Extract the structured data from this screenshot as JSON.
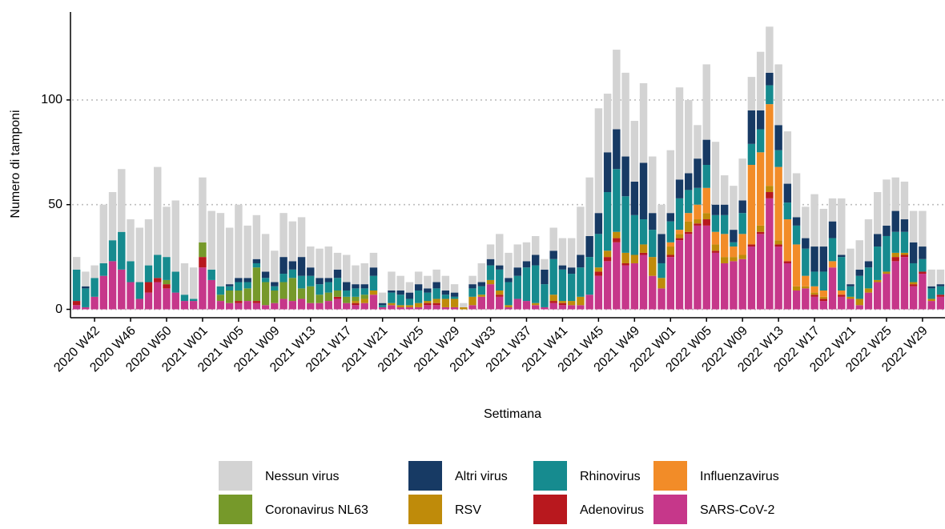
{
  "chart_data": {
    "type": "stacked-bar",
    "x_label": "Settimana",
    "y_label": "Numero di tamponi",
    "categories": [
      null,
      null,
      "2020 W42",
      null,
      null,
      null,
      "2020 W46",
      null,
      null,
      null,
      "2020 W50",
      null,
      null,
      null,
      "2021 W01",
      null,
      null,
      null,
      "2021 W05",
      null,
      null,
      null,
      "2021 W09",
      null,
      null,
      null,
      "2021 W13",
      null,
      null,
      null,
      "2021 W17",
      null,
      null,
      null,
      "2021 W21",
      null,
      null,
      null,
      "2021 W25",
      null,
      null,
      null,
      "2021 W29",
      null,
      null,
      null,
      "2021 W33",
      null,
      null,
      null,
      "2021 W37",
      null,
      null,
      null,
      "2021 W41",
      null,
      null,
      null,
      "2021 W45",
      null,
      null,
      null,
      "2021 W49",
      null,
      null,
      null,
      "2022 W01",
      null,
      null,
      null,
      "2022 W05",
      null,
      null,
      null,
      "2022 W09",
      null,
      null,
      null,
      "2022 W13",
      null,
      null,
      null,
      "2022 W17",
      null,
      null,
      null,
      "2022 W21",
      null,
      null,
      null,
      "2022 W25",
      null,
      null,
      null,
      "2022 W29",
      null,
      null
    ],
    "series": [
      {
        "name": "Nessun virus",
        "color": "#d3d3d3",
        "values": [
          6,
          7,
          6,
          28,
          23,
          30,
          20,
          26,
          22,
          42,
          24,
          34,
          15,
          15,
          31,
          28,
          35,
          27,
          35,
          25,
          21,
          18,
          15,
          21,
          19,
          19,
          10,
          14,
          15,
          8,
          13,
          9,
          10,
          7,
          5,
          9,
          7,
          5,
          6,
          6,
          6,
          7,
          4,
          2,
          4,
          9,
          7,
          15,
          12,
          11,
          9,
          9,
          5,
          11,
          13,
          14,
          23,
          28,
          50,
          28,
          38,
          40,
          29,
          38,
          27,
          14,
          30,
          44,
          35,
          16,
          36,
          30,
          14,
          21,
          20,
          16,
          28,
          22,
          29,
          25,
          21,
          15,
          25,
          18,
          11,
          27,
          17,
          14,
          20,
          20,
          22,
          16,
          18,
          15,
          17,
          8,
          7
        ]
      },
      {
        "name": "Altri virus",
        "color": "#173a64",
        "values": [
          0,
          1,
          0,
          0,
          0,
          0,
          0,
          0,
          0,
          0,
          0,
          0,
          0,
          0,
          0,
          0,
          0,
          1,
          2,
          2,
          2,
          3,
          2,
          8,
          4,
          9,
          4,
          3,
          2,
          4,
          4,
          2,
          2,
          4,
          1,
          1,
          2,
          3,
          3,
          2,
          3,
          2,
          2,
          0,
          2,
          2,
          3,
          2,
          2,
          4,
          3,
          5,
          7,
          4,
          2,
          3,
          6,
          10,
          10,
          19,
          19,
          19,
          16,
          27,
          8,
          14,
          4,
          9,
          8,
          14,
          12,
          5,
          5,
          6,
          6,
          16,
          9,
          6,
          12,
          9,
          4,
          5,
          12,
          12,
          8,
          1,
          1,
          3,
          3,
          6,
          5,
          10,
          6,
          10,
          6,
          1,
          1
        ]
      },
      {
        "name": "Rhinovirus",
        "color": "#168b8f",
        "values": [
          15,
          9,
          9,
          6,
          10,
          18,
          10,
          8,
          8,
          11,
          11,
          10,
          3,
          1,
          0,
          5,
          4,
          2,
          4,
          3,
          2,
          2,
          2,
          4,
          4,
          6,
          5,
          5,
          5,
          6,
          3,
          4,
          3,
          7,
          1,
          5,
          5,
          3,
          6,
          4,
          5,
          2,
          1,
          0,
          4,
          4,
          7,
          10,
          11,
          11,
          16,
          18,
          11,
          17,
          15,
          13,
          14,
          18,
          16,
          28,
          30,
          27,
          19,
          12,
          13,
          7,
          10,
          15,
          11,
          8,
          11,
          8,
          9,
          2,
          10,
          10,
          11,
          9,
          8,
          8,
          9,
          13,
          7,
          9,
          11,
          16,
          5,
          11,
          10,
          16,
          17,
          10,
          10,
          9,
          6,
          5,
          4
        ]
      },
      {
        "name": "Influenzavirus",
        "color": "#f28c28",
        "values": [
          0,
          0,
          0,
          0,
          0,
          0,
          0,
          0,
          0,
          0,
          0,
          0,
          0,
          0,
          0,
          0,
          0,
          0,
          0,
          0,
          0,
          0,
          0,
          0,
          0,
          0,
          0,
          0,
          0,
          0,
          0,
          0,
          0,
          0,
          0,
          0,
          0,
          0,
          0,
          0,
          0,
          0,
          0,
          0,
          0,
          0,
          0,
          0,
          0,
          0,
          0,
          0,
          0,
          0,
          0,
          0,
          0,
          0,
          0,
          0,
          0,
          0,
          0,
          0,
          0,
          0,
          2,
          2,
          4,
          7,
          12,
          6,
          11,
          5,
          10,
          38,
          35,
          39,
          35,
          20,
          20,
          5,
          3,
          3,
          3,
          2,
          0,
          0,
          0,
          0,
          0,
          0,
          0,
          0,
          0,
          0,
          0
        ]
      },
      {
        "name": "Coronavirus NL63",
        "color": "#76992a",
        "values": [
          0,
          0,
          0,
          0,
          0,
          0,
          0,
          0,
          0,
          0,
          2,
          0,
          0,
          0,
          7,
          0,
          3,
          6,
          5,
          6,
          16,
          11,
          6,
          8,
          11,
          5,
          8,
          4,
          4,
          3,
          3,
          2,
          2,
          0,
          0,
          0,
          0,
          0,
          0,
          0,
          0,
          0,
          0,
          0,
          0,
          0,
          0,
          0,
          0,
          0,
          0,
          0,
          0,
          0,
          0,
          0,
          0,
          0,
          0,
          0,
          0,
          0,
          0,
          0,
          0,
          0,
          0,
          0,
          0,
          0,
          0,
          0,
          0,
          0,
          0,
          0,
          0,
          0,
          0,
          0,
          0,
          0,
          0,
          0,
          0,
          0,
          0,
          0,
          0,
          0,
          0,
          0,
          0,
          0,
          0,
          0,
          0
        ]
      },
      {
        "name": "RSV",
        "color": "#bf8b0a",
        "values": [
          0,
          0,
          0,
          0,
          0,
          0,
          0,
          0,
          0,
          0,
          0,
          0,
          0,
          0,
          0,
          0,
          0,
          0,
          0,
          0,
          0,
          0,
          0,
          0,
          0,
          0,
          0,
          0,
          0,
          0,
          0,
          1,
          2,
          2,
          0,
          1,
          1,
          1,
          2,
          1,
          2,
          4,
          4,
          1,
          4,
          1,
          2,
          2,
          1,
          0,
          0,
          1,
          0,
          3,
          1,
          2,
          4,
          0,
          2,
          3,
          3,
          5,
          4,
          4,
          9,
          5,
          4,
          2,
          5,
          2,
          3,
          3,
          3,
          2,
          2,
          0,
          3,
          3,
          2,
          0,
          2,
          1,
          1,
          1,
          0,
          0,
          1,
          3,
          2,
          1,
          1,
          2,
          1,
          1,
          0,
          1,
          0
        ]
      },
      {
        "name": "Adenovirus",
        "color": "#b8181e",
        "values": [
          2,
          0,
          0,
          0,
          0,
          0,
          0,
          0,
          5,
          2,
          2,
          0,
          0,
          0,
          5,
          0,
          0,
          0,
          1,
          0,
          1,
          0,
          0,
          0,
          0,
          0,
          0,
          0,
          0,
          1,
          0,
          1,
          0,
          0,
          0,
          0,
          0,
          0,
          0,
          1,
          1,
          0,
          0,
          0,
          0,
          0,
          0,
          1,
          0,
          0,
          0,
          0,
          0,
          1,
          1,
          0,
          0,
          0,
          2,
          2,
          2,
          1,
          0,
          1,
          0,
          0,
          1,
          1,
          1,
          1,
          3,
          1,
          0,
          0,
          0,
          1,
          1,
          3,
          1,
          1,
          0,
          0,
          1,
          1,
          0,
          1,
          0,
          0,
          0,
          0,
          0,
          2,
          1,
          1,
          1,
          0,
          1
        ]
      },
      {
        "name": "SARS-CoV-2",
        "color": "#c6378a",
        "values": [
          2,
          1,
          6,
          16,
          23,
          19,
          13,
          5,
          8,
          13,
          10,
          8,
          4,
          4,
          20,
          14,
          4,
          3,
          3,
          4,
          3,
          2,
          3,
          5,
          4,
          5,
          3,
          3,
          4,
          5,
          3,
          2,
          3,
          7,
          1,
          2,
          1,
          1,
          1,
          2,
          2,
          1,
          1,
          0,
          2,
          6,
          12,
          6,
          1,
          5,
          4,
          2,
          1,
          3,
          2,
          2,
          2,
          7,
          16,
          23,
          32,
          21,
          22,
          26,
          16,
          10,
          25,
          33,
          36,
          40,
          40,
          27,
          22,
          23,
          24,
          30,
          36,
          53,
          30,
          22,
          9,
          10,
          6,
          4,
          20,
          6,
          5,
          2,
          8,
          13,
          17,
          23,
          25,
          11,
          17,
          4,
          6
        ]
      }
    ],
    "ylim": [
      -4,
      142
    ],
    "yticks": [
      0,
      50,
      100
    ],
    "grid": true,
    "legend": "bottom"
  }
}
